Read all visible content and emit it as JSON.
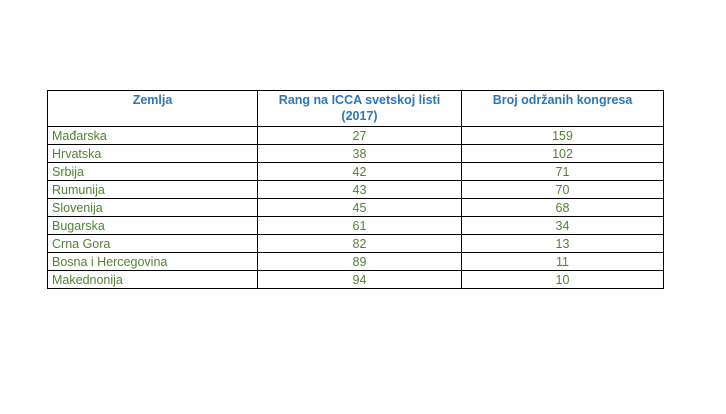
{
  "colors": {
    "header_text": "#2e75b6",
    "body_text": "#538135",
    "border": "#000000"
  },
  "table": {
    "headers": [
      "Zemlja",
      "Rang na ICCA svetskoj listi (2017)",
      "Broj održanih kongresa"
    ],
    "rows": [
      [
        "Mađarska",
        "27",
        "159"
      ],
      [
        "Hrvatska",
        "38",
        "102"
      ],
      [
        "Srbija",
        "42",
        "71"
      ],
      [
        "Rumunija",
        "43",
        "70"
      ],
      [
        "Slovenija",
        "45",
        "68"
      ],
      [
        "Bugarska",
        "61",
        "34"
      ],
      [
        "Crna Gora",
        "82",
        "13"
      ],
      [
        "Bosna i Hercegovina",
        "89",
        "11"
      ],
      [
        "Makednonija",
        "94",
        "10"
      ]
    ]
  }
}
